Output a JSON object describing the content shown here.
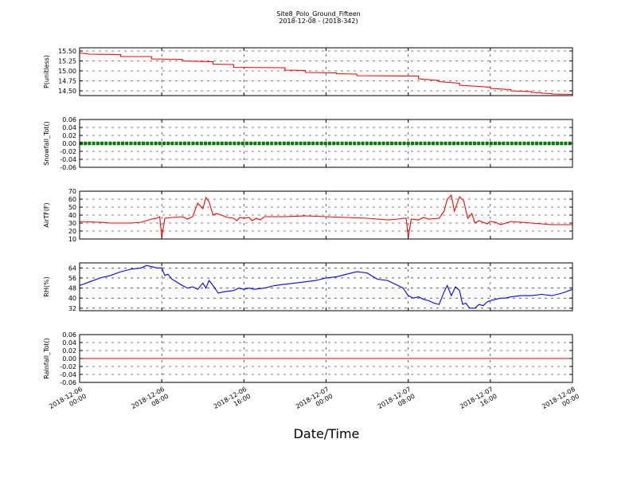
{
  "chart_data": {
    "type": "line",
    "title": "Site8_Polo_Ground_Fifteen",
    "subtitle": "2018-12-08 - (2018-342)",
    "xlabel": "Date/Time",
    "x_ticks": [
      [
        "2018-12-06",
        "00:00"
      ],
      [
        "2018-12-06",
        "08:00"
      ],
      [
        "2018-12-06",
        "16:00"
      ],
      [
        "2018-12-07",
        "00:00"
      ],
      [
        "2018-12-07",
        "08:00"
      ],
      [
        "2018-12-07",
        "16:00"
      ],
      [
        "2018-12-08",
        "00:00"
      ]
    ],
    "x_range_hours": [
      0,
      48
    ],
    "grid": true,
    "panels": [
      {
        "ylabel": "P(unitless)",
        "ylim": [
          14.38,
          15.58
        ],
        "yticks": [
          "15.50",
          "15.25",
          "15.00",
          "14.75",
          "14.50"
        ],
        "ytick_values": [
          15.5,
          15.25,
          15.0,
          14.75,
          14.5
        ],
        "color": "#ff0000",
        "markers": false,
        "x": [
          0,
          1,
          4,
          4,
          7,
          7,
          10,
          10,
          13,
          13,
          15,
          15,
          20,
          20,
          22,
          22,
          25,
          25,
          27,
          27,
          33,
          33,
          35,
          35,
          37,
          37,
          40,
          40,
          42,
          42,
          44,
          44,
          45,
          45,
          46,
          46,
          48
        ],
        "y": [
          15.45,
          15.42,
          15.41,
          15.36,
          15.36,
          15.3,
          15.29,
          15.25,
          15.23,
          15.17,
          15.16,
          15.09,
          15.08,
          15.02,
          15.01,
          14.96,
          14.95,
          14.93,
          14.92,
          14.88,
          14.87,
          14.8,
          14.76,
          14.73,
          14.69,
          14.64,
          14.59,
          14.56,
          14.53,
          14.5,
          14.48,
          14.46,
          14.45,
          14.44,
          14.43,
          14.42,
          14.41
        ]
      },
      {
        "ylabel": "Snowfall_Tot()",
        "ylim": [
          -0.06,
          0.06
        ],
        "yticks": [
          "0.06",
          "0.04",
          "0.02",
          "0.00",
          "-0.02",
          "-0.04",
          "-0.06"
        ],
        "ytick_values": [
          0.06,
          0.04,
          0.02,
          0.0,
          -0.02,
          -0.04,
          -0.06
        ],
        "color": "#008000",
        "markers": true,
        "x": [
          0,
          48
        ],
        "y": [
          0,
          0
        ]
      },
      {
        "ylabel": "AirTF(F)",
        "ylim": [
          10,
          70
        ],
        "yticks": [
          "70",
          "60",
          "50",
          "40",
          "30",
          "20",
          "10"
        ],
        "ytick_values": [
          70,
          60,
          50,
          40,
          30,
          20,
          10
        ],
        "color": "#ff0000",
        "markers": false,
        "x": [
          0,
          2,
          3,
          4,
          5,
          6,
          7,
          7.5,
          7.8,
          8.0,
          8.3,
          9,
          10,
          10.5,
          11,
          11.5,
          12,
          12.3,
          12.6,
          13,
          13.3,
          13.8,
          14.4,
          15,
          15.3,
          15.6,
          16,
          16.5,
          16.8,
          17.2,
          17.6,
          18,
          20,
          22,
          24,
          26,
          28,
          29,
          30,
          31,
          31.5,
          31.8,
          32.0,
          32.3,
          33,
          33.5,
          34,
          35,
          35.5,
          35.8,
          36.2,
          36.5,
          37,
          37.4,
          37.8,
          38.2,
          38.5,
          38.9,
          39.3,
          39.7,
          40,
          40.5,
          41,
          41.5,
          42,
          43,
          44,
          45,
          46,
          47,
          48
        ],
        "y": [
          32,
          31,
          30,
          30,
          30,
          31,
          35,
          36,
          38,
          12,
          36,
          37,
          38,
          35,
          38,
          55,
          48,
          62,
          57,
          40,
          42,
          40,
          37,
          36,
          33,
          37,
          36,
          37,
          33,
          36,
          34,
          38,
          38,
          39,
          38,
          37,
          36,
          35,
          34,
          35,
          36,
          36,
          12,
          35,
          34,
          37,
          35,
          36,
          45,
          60,
          65,
          45,
          63,
          58,
          36,
          42,
          30,
          33,
          31,
          29,
          32,
          31,
          28,
          30,
          32,
          31,
          30,
          29,
          28,
          28,
          28
        ]
      },
      {
        "ylabel": "RH(%)",
        "ylim": [
          30,
          68
        ],
        "yticks": [
          "64",
          "56",
          "48",
          "40",
          "32"
        ],
        "ytick_values": [
          64,
          56,
          48,
          40,
          32
        ],
        "color": "#0000ff",
        "markers": false,
        "x": [
          0,
          1,
          2,
          3,
          4,
          5,
          6,
          6.5,
          7,
          7.5,
          8,
          8.3,
          8.6,
          9,
          10,
          10.5,
          11,
          11.5,
          12,
          12.3,
          12.6,
          13,
          13.5,
          14,
          15,
          15.5,
          16,
          16.5,
          17,
          18,
          19,
          20,
          21,
          22,
          23,
          24,
          25,
          26,
          27,
          28,
          29,
          30,
          31,
          31.5,
          32,
          32.5,
          33,
          33.5,
          34,
          34.5,
          35,
          35.5,
          35.8,
          36.2,
          36.6,
          37,
          37.3,
          37.6,
          38,
          38.5,
          38.9,
          39.3,
          39.7,
          40,
          40.5,
          41,
          41.5,
          42,
          43,
          44,
          45,
          46,
          47,
          48
        ],
        "y": [
          50,
          53,
          56,
          58,
          61,
          63,
          64,
          66,
          65,
          64,
          64,
          58,
          59,
          55,
          50,
          48,
          49,
          47,
          52,
          48,
          54,
          50,
          44,
          45,
          46,
          48,
          47,
          48,
          47,
          48,
          50,
          51,
          52,
          53,
          54,
          56,
          57,
          59,
          61,
          60,
          55,
          54,
          50,
          48,
          42,
          40,
          41,
          39,
          38,
          36,
          35,
          45,
          50,
          42,
          49,
          46,
          35,
          36,
          32,
          32,
          35,
          34,
          37,
          38,
          39,
          40,
          40,
          41,
          42,
          42,
          43,
          42,
          44,
          47
        ]
      },
      {
        "ylabel": "Rainfall_Tot()",
        "ylim": [
          -0.06,
          0.06
        ],
        "yticks": [
          "0.06",
          "0.04",
          "0.02",
          "0.00",
          "-0.02",
          "-0.04",
          "-0.06"
        ],
        "ytick_values": [
          0.06,
          0.04,
          0.02,
          0.0,
          -0.02,
          -0.04,
          -0.06
        ],
        "color": "#ff0000",
        "markers": false,
        "x": [
          0,
          48
        ],
        "y": [
          0,
          0
        ]
      }
    ]
  }
}
